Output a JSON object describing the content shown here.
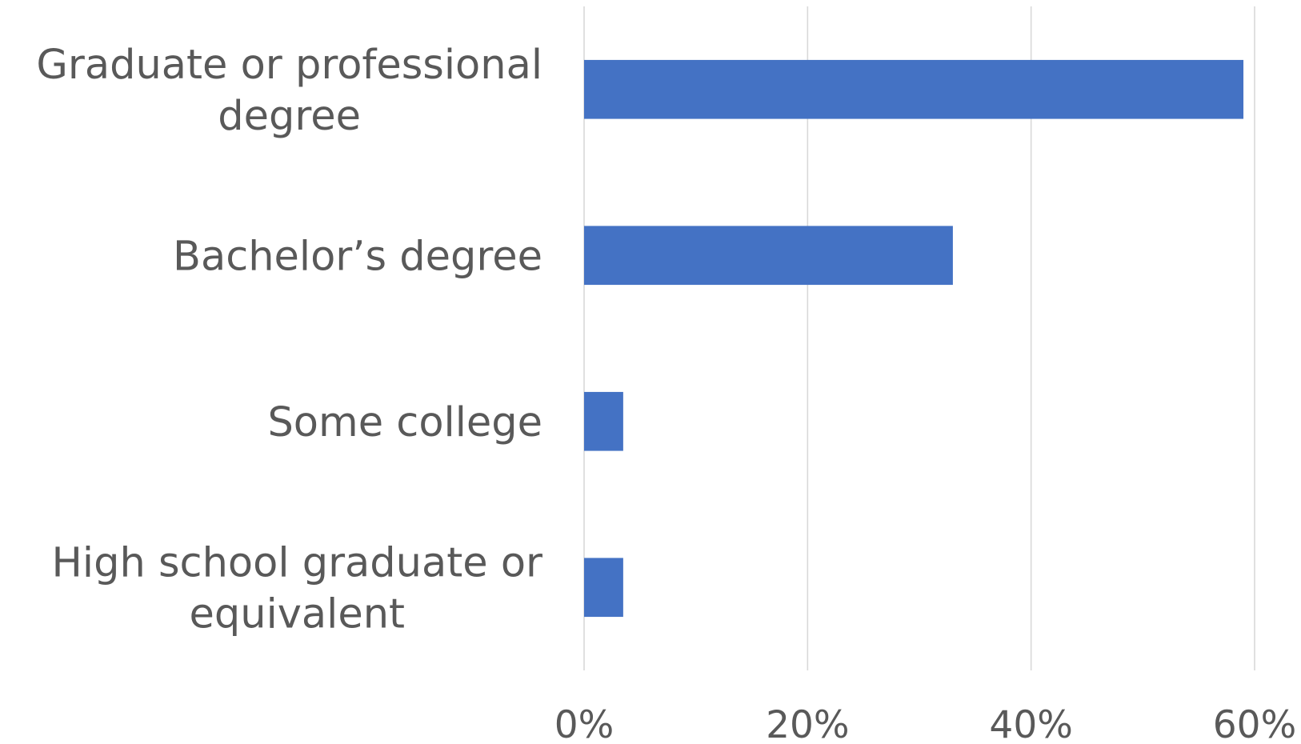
{
  "chart_data": {
    "type": "bar",
    "orientation": "horizontal",
    "categories": [
      [
        "Graduate or professional",
        "degree"
      ],
      [
        "Bachelor’s degree"
      ],
      [
        "Some college"
      ],
      [
        "High school graduate or",
        "equivalent"
      ]
    ],
    "values": [
      59,
      33,
      3.5,
      3.5
    ],
    "xlim": [
      0,
      60
    ],
    "x_ticks": [
      {
        "value": 0,
        "label": "0%"
      },
      {
        "value": 20,
        "label": "20%"
      },
      {
        "value": 40,
        "label": "40%"
      },
      {
        "value": 60,
        "label": "60%"
      }
    ],
    "grid": "vertical",
    "legend": "none",
    "title": "",
    "xlabel": "",
    "ylabel": "",
    "colors": {
      "bar": "#4472c4",
      "grid": "#d9d9d9",
      "text": "#595959"
    }
  }
}
